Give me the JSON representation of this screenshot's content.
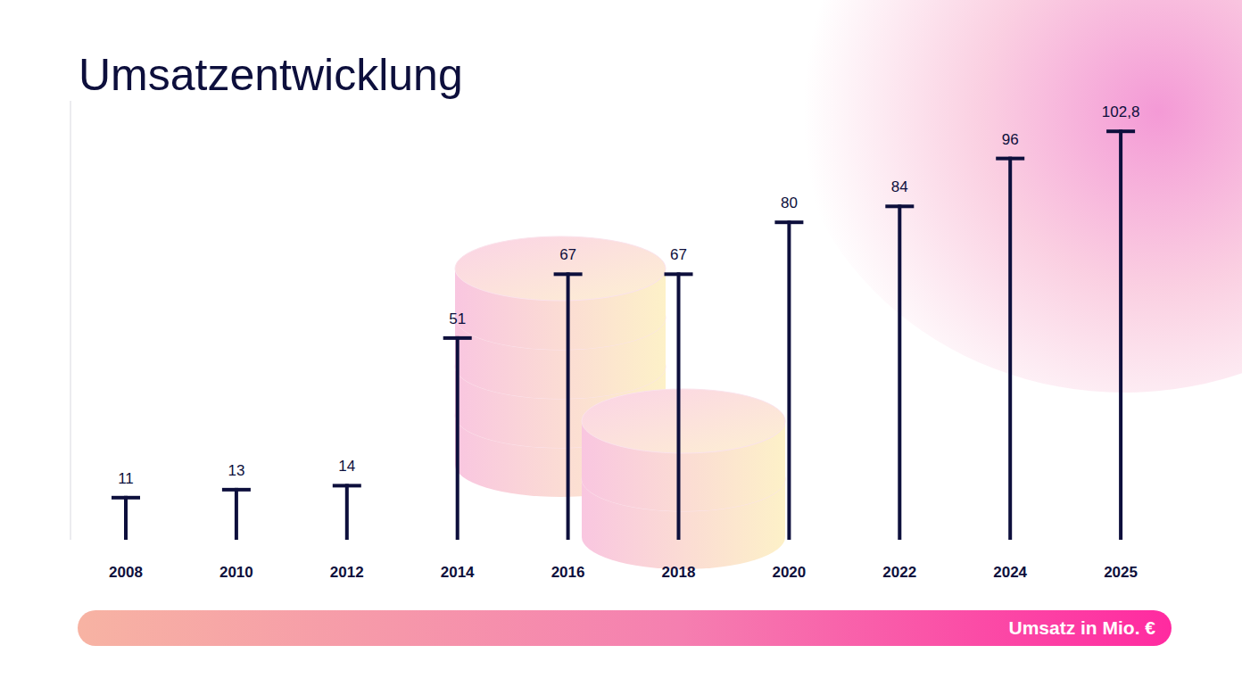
{
  "chart_data": {
    "type": "bar",
    "title": "Umsatzentwicklung",
    "ylabel": "Umsatz in Mio. €",
    "categories": [
      "2008",
      "2010",
      "2012",
      "2014",
      "2016",
      "2018",
      "2020",
      "2022",
      "2024",
      "2025"
    ],
    "values": [
      11,
      13,
      14,
      51,
      67,
      67,
      80,
      84,
      96,
      102.8
    ],
    "value_labels": [
      "11",
      "13",
      "14",
      "51",
      "67",
      "67",
      "80",
      "84",
      "96",
      "102,8"
    ],
    "color": "#0d0f3c",
    "ylim": [
      0,
      110
    ],
    "data_labels": true,
    "tick_labels": "x",
    "grid": false
  }
}
